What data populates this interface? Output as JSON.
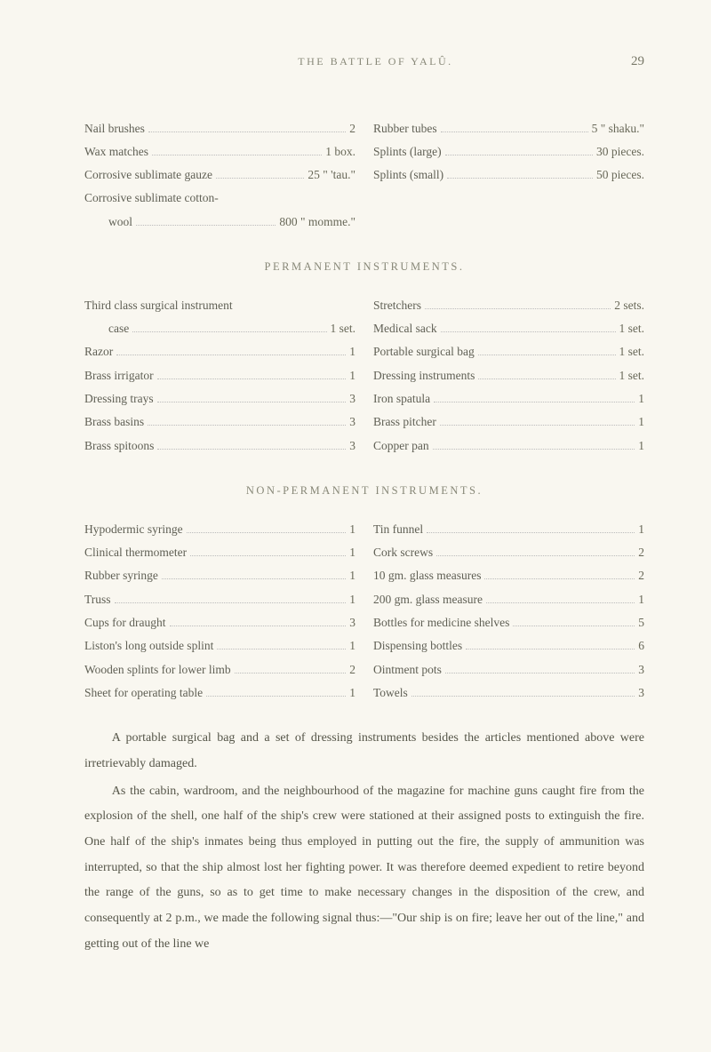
{
  "header": {
    "running_title": "THE BATTLE OF YALÛ.",
    "page_number": "29"
  },
  "list1": {
    "left": [
      {
        "label": "Nail brushes",
        "value": "2"
      },
      {
        "label": "Wax matches",
        "value": "1 box."
      },
      {
        "label": "Corrosive sublimate gauze",
        "value": "25 \" 'tau.\""
      },
      {
        "label": "Corrosive sublimate cotton-",
        "value": ""
      },
      {
        "label": "        wool",
        "value": "800 \" momme.\""
      }
    ],
    "right": [
      {
        "label": "Rubber tubes",
        "value": "5 \" shaku.\""
      },
      {
        "label": "Splints (large)",
        "value": "30 pieces."
      },
      {
        "label": "Splints (small)",
        "value": "50 pieces."
      }
    ]
  },
  "section2_title": "PERMANENT INSTRUMENTS.",
  "list2": {
    "left": [
      {
        "label": "Third class surgical instrument",
        "value": ""
      },
      {
        "label": "        case",
        "value": "1 set."
      },
      {
        "label": "Razor",
        "value": "1"
      },
      {
        "label": "Brass irrigator",
        "value": "1"
      },
      {
        "label": "Dressing trays",
        "value": "3"
      },
      {
        "label": "Brass basins",
        "value": "3"
      },
      {
        "label": "Brass spitoons",
        "value": "3"
      }
    ],
    "right": [
      {
        "label": "Stretchers",
        "value": "2 sets."
      },
      {
        "label": "Medical sack",
        "value": "1 set."
      },
      {
        "label": "Portable surgical bag",
        "value": "1 set."
      },
      {
        "label": "Dressing instruments",
        "value": "1 set."
      },
      {
        "label": "Iron spatula",
        "value": "1"
      },
      {
        "label": "Brass pitcher",
        "value": "1"
      },
      {
        "label": "Copper pan",
        "value": "1"
      }
    ]
  },
  "section3_title": "NON-PERMANENT INSTRUMENTS.",
  "list3": {
    "left": [
      {
        "label": "Hypodermic syringe",
        "value": "1"
      },
      {
        "label": "Clinical thermometer",
        "value": "1"
      },
      {
        "label": "Rubber syringe",
        "value": "1"
      },
      {
        "label": "Truss",
        "value": "1"
      },
      {
        "label": "Cups for draught",
        "value": "3"
      },
      {
        "label": "Liston's long outside splint",
        "value": "1"
      },
      {
        "label": "Wooden splints for lower limb",
        "value": "2"
      },
      {
        "label": "Sheet for operating table",
        "value": "1"
      }
    ],
    "right": [
      {
        "label": "Tin funnel",
        "value": "1"
      },
      {
        "label": "Cork screws",
        "value": "2"
      },
      {
        "label": "10 gm. glass measures",
        "value": "2"
      },
      {
        "label": "200 gm. glass measure",
        "value": "1"
      },
      {
        "label": "Bottles for medicine shelves",
        "value": "5"
      },
      {
        "label": "Dispensing bottles",
        "value": "6"
      },
      {
        "label": "Ointment pots",
        "value": "3"
      },
      {
        "label": "Towels",
        "value": "3"
      }
    ]
  },
  "paragraphs": [
    "A portable surgical bag and a set of dressing instruments besides the articles mentioned above were irretrievably damaged.",
    "As the cabin, wardroom, and the neighbourhood of the magazine for machine guns caught fire from the explosion of the shell, one half of the ship's crew were stationed at their assigned posts to extinguish the fire. One half of the ship's inmates being thus employed in putting out the fire, the supply of ammunition was interrupted, so that the ship almost lost her fighting power. It was therefore deemed expedient to retire beyond the range of the guns, so as to get time to make necessary changes in the disposition of the crew, and consequently at 2 p.m., we made the following signal thus:—\"Our ship is on fire; leave her out of the line,\" and getting out of the line we"
  ]
}
